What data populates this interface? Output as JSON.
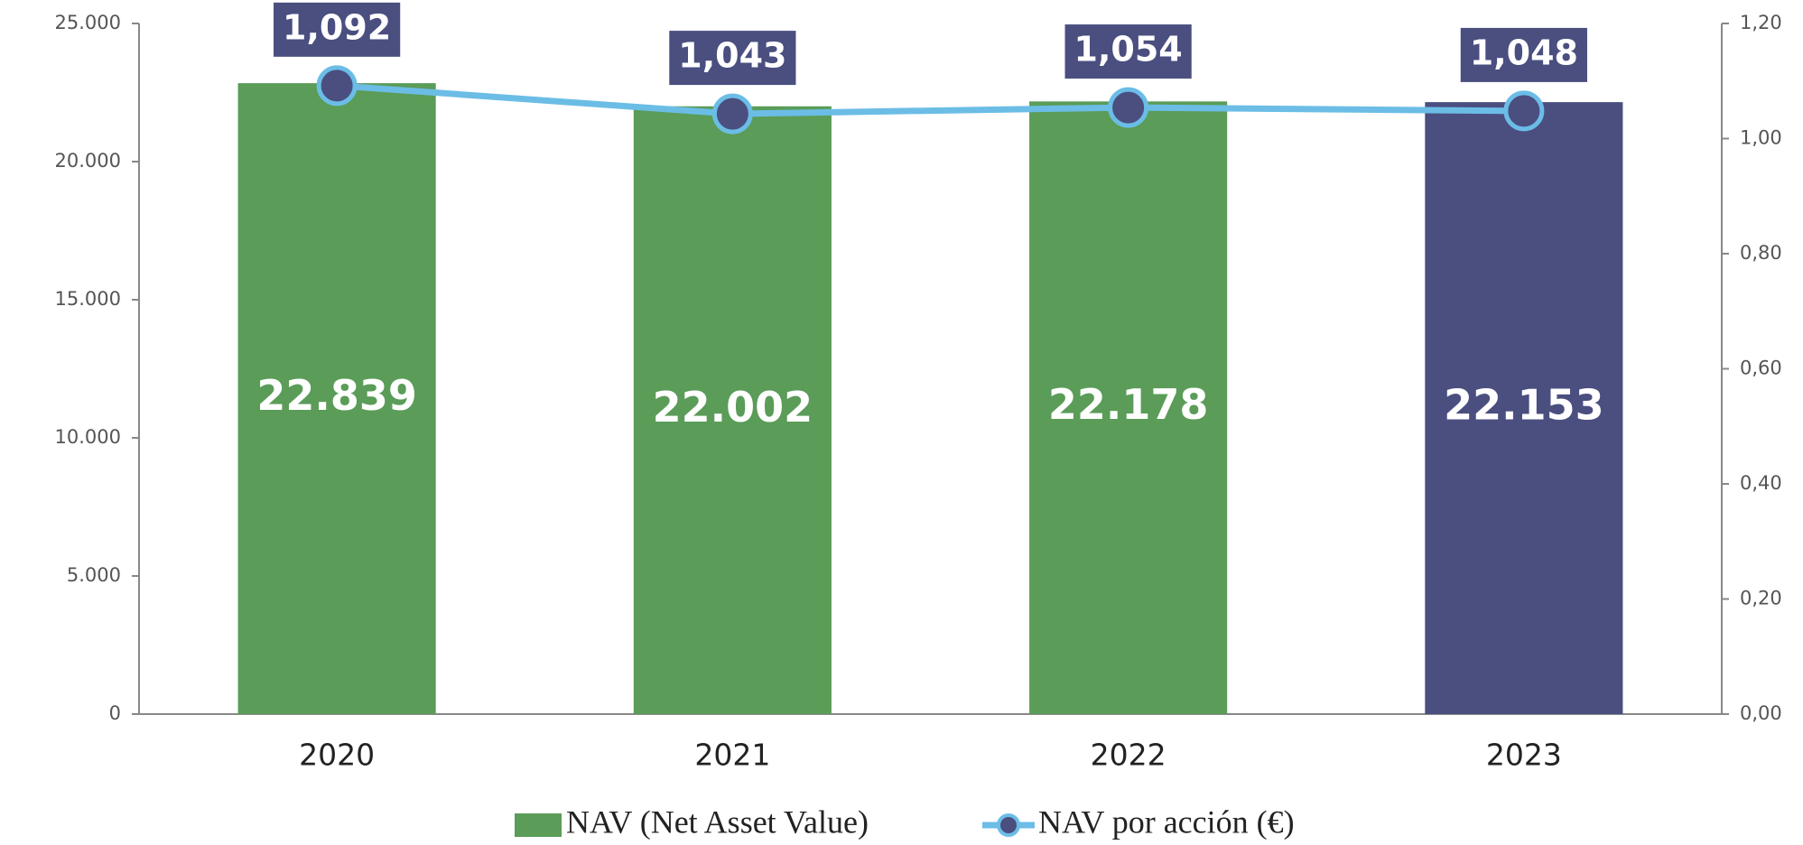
{
  "chart_data": {
    "type": "bar",
    "categories": [
      "2020",
      "2021",
      "2022",
      "2023"
    ],
    "series": [
      {
        "name": "NAV (Net Asset Value)",
        "type": "bar",
        "color": "#5a9c58",
        "colors": [
          "#5a9c58",
          "#5a9c58",
          "#5a9c58",
          "#4a4f80"
        ],
        "values": [
          22839,
          22002,
          22178,
          22153
        ],
        "value_labels": [
          "22.839",
          "22.002",
          "22.178",
          "22.153"
        ]
      },
      {
        "name": "NAV por acción (€)",
        "type": "line",
        "axis": "y2",
        "color": "#6bbde6",
        "marker_color": "#4a4f80",
        "values": [
          1.092,
          1.043,
          1.054,
          1.048
        ],
        "value_labels": [
          "1,092",
          "1,043",
          "1,054",
          "1,048"
        ]
      }
    ],
    "ylim": [
      0,
      25000
    ],
    "yticks": [
      {
        "value": 0,
        "label": "0"
      },
      {
        "value": 5000,
        "label": "5.000"
      },
      {
        "value": 10000,
        "label": "10.000"
      },
      {
        "value": 15000,
        "label": "15.000"
      },
      {
        "value": 20000,
        "label": "20.000"
      },
      {
        "value": 25000,
        "label": "25.000"
      }
    ],
    "y2lim": [
      0,
      1.2
    ],
    "y2ticks": [
      {
        "value": 0,
        "label": "0,00"
      },
      {
        "value": 0.2,
        "label": "0,20"
      },
      {
        "value": 0.4,
        "label": "0,40"
      },
      {
        "value": 0.6,
        "label": "0,60"
      },
      {
        "value": 0.8,
        "label": "0,80"
      },
      {
        "value": 1.0,
        "label": "1,00"
      },
      {
        "value": 1.2,
        "label": "1,20"
      }
    ],
    "grid": false,
    "legend": "bottom"
  }
}
